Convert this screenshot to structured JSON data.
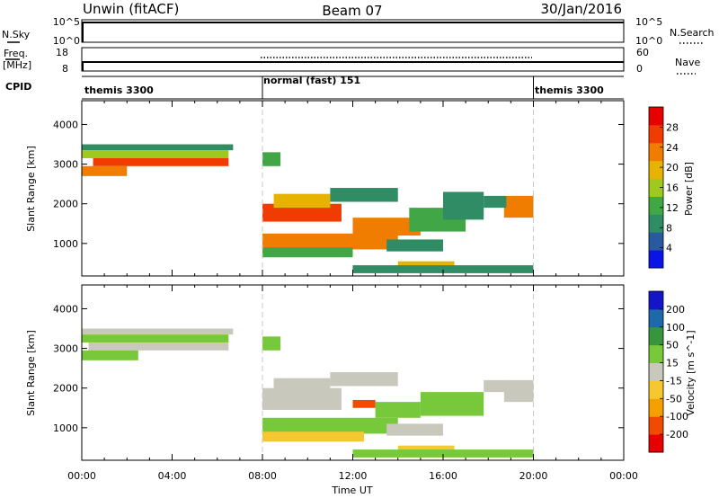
{
  "header": {
    "station": "Unwin (fitACF)",
    "beam": "Beam 07",
    "date": "30/Jan/2016"
  },
  "strip_labels": {
    "nsky": "N.Sky",
    "nsearch": "N.Search",
    "freq_top": "Freq.",
    "freq_unit": "[MHz]",
    "nave": "Nave",
    "cpid": "CPID",
    "nsky_ticks": [
      "10^5",
      "10^0"
    ],
    "nsearch_ticks": [
      "10^5",
      "10^0"
    ],
    "freq_ticks": [
      "18",
      "8"
    ],
    "nave_ticks": [
      "60",
      "0"
    ]
  },
  "cpid_segments": [
    {
      "label": "themis 3300",
      "start_hour": 0,
      "end_hour": 8
    },
    {
      "label": "normal (fast) 151",
      "start_hour": 8,
      "end_hour": 20
    },
    {
      "label": "themis 3300",
      "start_hour": 20,
      "end_hour": 24
    }
  ],
  "chart_data": [
    {
      "type": "heatmap",
      "panel": "power",
      "ylabel": "Slant Range [km]",
      "xlabel": "Time UT",
      "xlim": [
        0,
        24
      ],
      "ylim": [
        180,
        4600
      ],
      "yticks": [
        "1000",
        "2000",
        "3000",
        "4000"
      ],
      "xticks": [
        "00:00",
        "04:00",
        "08:00",
        "12:00",
        "16:00",
        "20:00",
        "00:00"
      ],
      "colorbar_label": "Power [dB]",
      "colorbar_ticks": [
        "28",
        "24",
        "20",
        "16",
        "12",
        "8",
        "4"
      ],
      "colorbar_range": [
        0,
        30
      ],
      "regions": [
        {
          "t0": 0.0,
          "t1": 6.7,
          "r0": 3350,
          "r1": 3500,
          "v": 8
        },
        {
          "t0": 0.0,
          "t1": 6.5,
          "r0": 3150,
          "r1": 3350,
          "v": 14
        },
        {
          "t0": 0.5,
          "t1": 6.5,
          "r0": 2950,
          "r1": 3150,
          "v": 24
        },
        {
          "t0": 0.0,
          "t1": 2.0,
          "r0": 2700,
          "r1": 2950,
          "v": 20
        },
        {
          "t0": 8.0,
          "t1": 8.8,
          "r0": 2950,
          "r1": 3300,
          "v": 13
        },
        {
          "t0": 8.0,
          "t1": 11.5,
          "r0": 1550,
          "r1": 2000,
          "v": 24
        },
        {
          "t0": 8.5,
          "t1": 11.0,
          "r0": 1900,
          "r1": 2250,
          "v": 18
        },
        {
          "t0": 11.0,
          "t1": 14.0,
          "r0": 2050,
          "r1": 2400,
          "v": 9
        },
        {
          "t0": 12.0,
          "t1": 15.0,
          "r0": 1200,
          "r1": 1650,
          "v": 22
        },
        {
          "t0": 14.5,
          "t1": 17.0,
          "r0": 1300,
          "r1": 1900,
          "v": 13
        },
        {
          "t0": 16.0,
          "t1": 17.8,
          "r0": 1600,
          "r1": 2300,
          "v": 9
        },
        {
          "t0": 8.0,
          "t1": 14.0,
          "r0": 850,
          "r1": 1250,
          "v": 21
        },
        {
          "t0": 8.0,
          "t1": 12.0,
          "r0": 650,
          "r1": 900,
          "v": 10
        },
        {
          "t0": 13.5,
          "t1": 16.0,
          "r0": 800,
          "r1": 1100,
          "v": 8
        },
        {
          "t0": 14.0,
          "t1": 16.5,
          "r0": 350,
          "r1": 550,
          "v": 18
        },
        {
          "t0": 12.0,
          "t1": 20.0,
          "r0": 250,
          "r1": 450,
          "v": 7
        },
        {
          "t0": 18.7,
          "t1": 20.0,
          "r0": 1650,
          "r1": 2200,
          "v": 20
        },
        {
          "t0": 17.8,
          "t1": 18.8,
          "r0": 1900,
          "r1": 2200,
          "v": 9
        }
      ]
    },
    {
      "type": "heatmap",
      "panel": "velocity",
      "ylabel": "Slant Range [km]",
      "xlabel": "Time UT",
      "xlim": [
        0,
        24
      ],
      "ylim": [
        180,
        4600
      ],
      "yticks": [
        "1000",
        "2000",
        "3000",
        "4000"
      ],
      "xticks": [
        "00:00",
        "04:00",
        "08:00",
        "12:00",
        "16:00",
        "20:00",
        "00:00"
      ],
      "colorbar_label": "Velocity [m s^-1]",
      "colorbar_ticks": [
        "200",
        "100",
        "50",
        "15",
        "-15",
        "-50",
        "-100",
        "-200"
      ],
      "colorbar_range": [
        -250,
        250
      ],
      "regions": [
        {
          "t0": 0.0,
          "t1": 6.7,
          "r0": 3350,
          "r1": 3500,
          "v": -5
        },
        {
          "t0": 0.0,
          "t1": 6.5,
          "r0": 3150,
          "r1": 3350,
          "v": 30
        },
        {
          "t0": 0.3,
          "t1": 6.5,
          "r0": 2950,
          "r1": 3150,
          "v": 5
        },
        {
          "t0": 0.0,
          "t1": 2.5,
          "r0": 2700,
          "r1": 2950,
          "v": 30
        },
        {
          "t0": 8.0,
          "t1": 8.8,
          "r0": 2950,
          "r1": 3300,
          "v": 30
        },
        {
          "t0": 8.0,
          "t1": 11.5,
          "r0": 1450,
          "r1": 2000,
          "v": 0
        },
        {
          "t0": 8.5,
          "t1": 11.0,
          "r0": 1950,
          "r1": 2250,
          "v": 0
        },
        {
          "t0": 11.0,
          "t1": 14.0,
          "r0": 2050,
          "r1": 2400,
          "v": 5
        },
        {
          "t0": 12.0,
          "t1": 13.0,
          "r0": 1500,
          "r1": 1700,
          "v": -150
        },
        {
          "t0": 13.0,
          "t1": 15.0,
          "r0": 1250,
          "r1": 1650,
          "v": 80
        },
        {
          "t0": 15.0,
          "t1": 17.8,
          "r0": 1300,
          "r1": 1900,
          "v": 30
        },
        {
          "t0": 8.0,
          "t1": 14.0,
          "r0": 850,
          "r1": 1250,
          "v": 30
        },
        {
          "t0": 8.0,
          "t1": 12.5,
          "r0": 650,
          "r1": 900,
          "v": -40
        },
        {
          "t0": 13.5,
          "t1": 16.0,
          "r0": 800,
          "r1": 1100,
          "v": 5
        },
        {
          "t0": 14.0,
          "t1": 16.5,
          "r0": 350,
          "r1": 550,
          "v": -40
        },
        {
          "t0": 12.0,
          "t1": 20.0,
          "r0": 250,
          "r1": 450,
          "v": 30
        },
        {
          "t0": 18.7,
          "t1": 20.0,
          "r0": 1650,
          "r1": 2200,
          "v": 5
        },
        {
          "t0": 17.8,
          "t1": 18.8,
          "r0": 1900,
          "r1": 2200,
          "v": 5
        }
      ]
    }
  ],
  "colors": {
    "power": [
      "#0a14e6",
      "#285aa0",
      "#2f8c64",
      "#41a646",
      "#a0c81e",
      "#e6b400",
      "#f07d00",
      "#f03c00",
      "#e60000"
    ],
    "velocity": [
      "#e60000",
      "#f04b00",
      "#f5a000",
      "#f5c832",
      "#c8c8bc",
      "#78c83c",
      "#37963c",
      "#1e69aa",
      "#1414c8"
    ],
    "grid": "#c8c8c8"
  }
}
